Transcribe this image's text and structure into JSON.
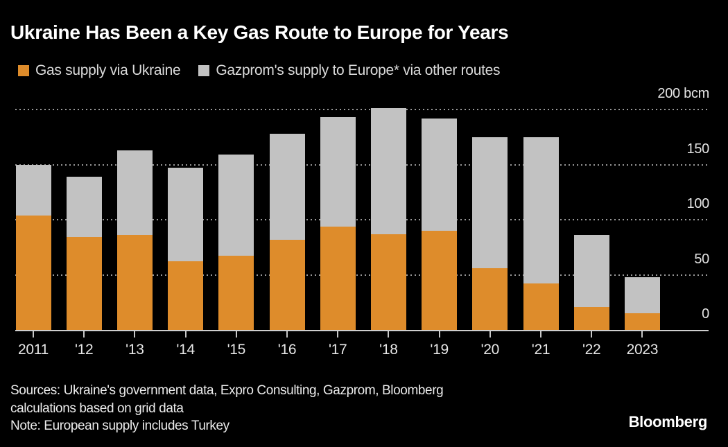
{
  "title": "Ukraine Has Been a Key Gas Route to Europe for Years",
  "legend": [
    {
      "label": "Gas supply via Ukraine",
      "color": "#DE8C2B"
    },
    {
      "label": "Gazprom's supply to Europe* via other routes",
      "color": "#C2C2C2"
    }
  ],
  "chart_data": {
    "type": "bar",
    "stacked": true,
    "title": "Ukraine Has Been a Key Gas Route to Europe for Years",
    "unit": "bcm",
    "categories": [
      "2011",
      "'12",
      "'13",
      "'14",
      "'15",
      "'16",
      "'17",
      "'18",
      "'19",
      "'20",
      "'21",
      "'22",
      "2023"
    ],
    "series": [
      {
        "name": "Gas supply via Ukraine",
        "color": "#DE8C2B",
        "values": [
          104,
          84,
          86,
          62,
          67,
          82,
          94,
          87,
          90,
          56,
          42,
          21,
          15
        ]
      },
      {
        "name": "Gazprom's supply to Europe* via other routes",
        "color": "#C2C2C2",
        "values": [
          46,
          55,
          77,
          85,
          92,
          96,
          99,
          114,
          102,
          119,
          133,
          65,
          33
        ]
      }
    ],
    "totals": [
      150,
      139,
      163,
      147,
      159,
      178,
      193,
      201,
      192,
      175,
      175,
      86,
      48
    ],
    "y_axis": {
      "max": 200,
      "ticks": [
        0,
        50,
        100,
        150,
        200
      ],
      "labels": [
        {
          "value": 0,
          "text": "0"
        },
        {
          "value": 50,
          "text": "50"
        },
        {
          "value": 100,
          "text": "100"
        },
        {
          "value": 150,
          "text": "150"
        },
        {
          "value": 200,
          "text": "200 bcm"
        }
      ]
    },
    "grid": "dotted-horizontal",
    "legend_position": "top-left"
  },
  "footer": {
    "sources": [
      "Sources: Ukraine's government data, Expro Consulting, Gazprom, Bloomberg",
      "calculations based on grid data"
    ],
    "note": "Note: European supply includes Turkey",
    "brand": "Bloomberg"
  },
  "colors": {
    "background": "#000000",
    "accent_orange": "#DE8C2B",
    "accent_gray": "#C2C2C2"
  }
}
